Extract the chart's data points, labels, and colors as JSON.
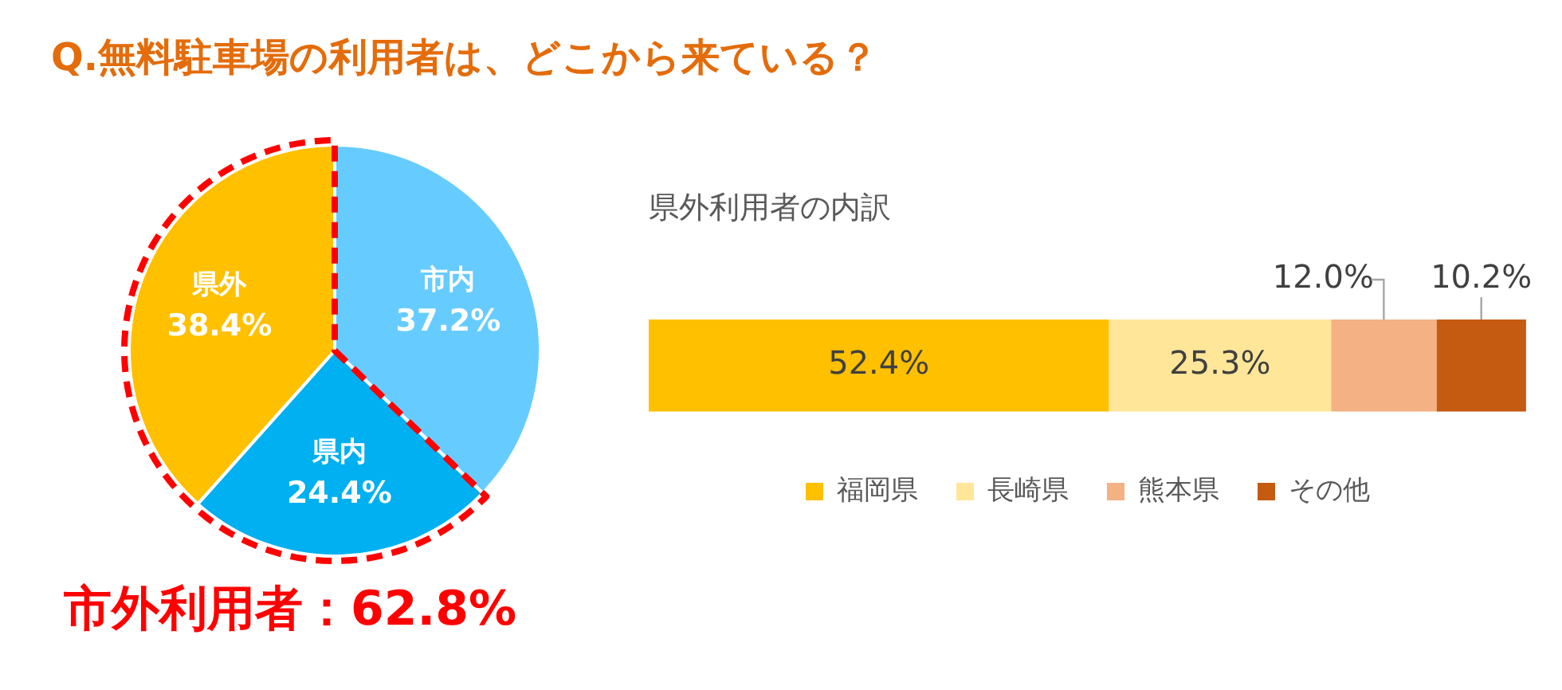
{
  "chart_data": [
    {
      "type": "pie",
      "title": "Q.無料駐車場の利用者は、どこから来ている？",
      "categories": [
        "市内",
        "県内",
        "県外"
      ],
      "values": [
        37.2,
        24.4,
        38.4
      ],
      "value_labels": [
        "37.2%",
        "24.4%",
        "38.4%"
      ],
      "colors": [
        "#66ccff",
        "#00b0f0",
        "#ffc000"
      ],
      "annotations": [
        "市外利用者：62.8%"
      ],
      "legend": false
    },
    {
      "type": "bar",
      "orientation": "horizontal",
      "stacked": true,
      "title": "県外利用者の内訳",
      "categories": [
        null
      ],
      "legend": "bottom",
      "series": [
        {
          "name": "福岡県",
          "color": "#ffc000",
          "values": [
            52.4
          ],
          "value_labels": [
            "52.4%"
          ]
        },
        {
          "name": "長崎県",
          "color": "#ffe699",
          "values": [
            25.3
          ],
          "value_labels": [
            "25.3%"
          ]
        },
        {
          "name": "熊本県",
          "color": "#f4b183",
          "values": [
            12.0
          ],
          "value_labels": [
            "12.0%"
          ]
        },
        {
          "name": "その他",
          "color": "#c55a11",
          "values": [
            10.2
          ],
          "value_labels": [
            "10.2%"
          ]
        }
      ]
    }
  ]
}
